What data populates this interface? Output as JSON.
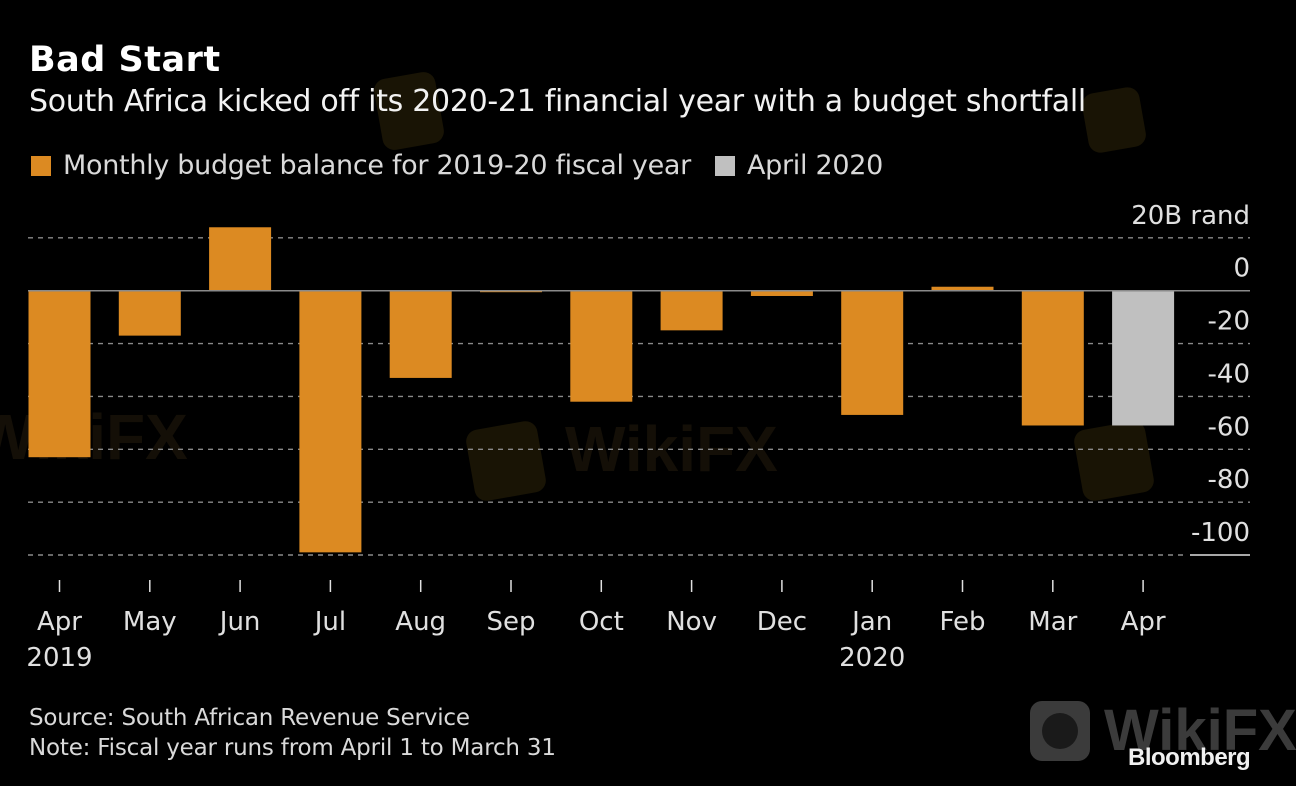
{
  "header": {
    "title": "Bad Start",
    "subtitle": "South Africa kicked off its 2020-21 financial year with a budget shortfall"
  },
  "legend": [
    {
      "label": "Monthly budget balance for 2019-20 fiscal year",
      "color": "#dc8a22"
    },
    {
      "label": "April 2020",
      "color": "#c0c0c0"
    }
  ],
  "footer": {
    "source": "Source: South African Revenue Service",
    "note": "Note: Fiscal year runs from April 1 to March 31"
  },
  "brand": "Bloomberg",
  "watermark": "WikiFX",
  "chart_data": {
    "type": "bar",
    "title": "Bad Start",
    "subtitle": "South Africa kicked off its 2020-21 financial year with a budget shortfall",
    "xlabel": "",
    "ylabel": "20B rand",
    "unit_label": "20B rand",
    "ylim": [
      -100,
      20
    ],
    "yticks": [
      20,
      0,
      -20,
      -40,
      -60,
      -80,
      -100
    ],
    "ytick_labels": [
      "20B rand",
      "0",
      "-20",
      "-40",
      "-60",
      "-80",
      "-100"
    ],
    "grid": true,
    "legend_position": "top-left",
    "categories": [
      "Apr",
      "May",
      "Jun",
      "Jul",
      "Aug",
      "Sep",
      "Oct",
      "Nov",
      "Dec",
      "Jan",
      "Feb",
      "Mar",
      "Apr"
    ],
    "year_labels": {
      "0": "2019",
      "9": "2020"
    },
    "series": [
      {
        "name": "Monthly budget balance for 2019-20 fiscal year",
        "color": "#dc8a22",
        "values": [
          -63,
          -17,
          24,
          -99,
          -33,
          -0.5,
          -42,
          -15,
          -2,
          -47,
          1.5,
          -51,
          null
        ]
      },
      {
        "name": "April 2020",
        "color": "#c0c0c0",
        "values": [
          null,
          null,
          null,
          null,
          null,
          null,
          null,
          null,
          null,
          null,
          null,
          null,
          -51
        ]
      }
    ]
  }
}
